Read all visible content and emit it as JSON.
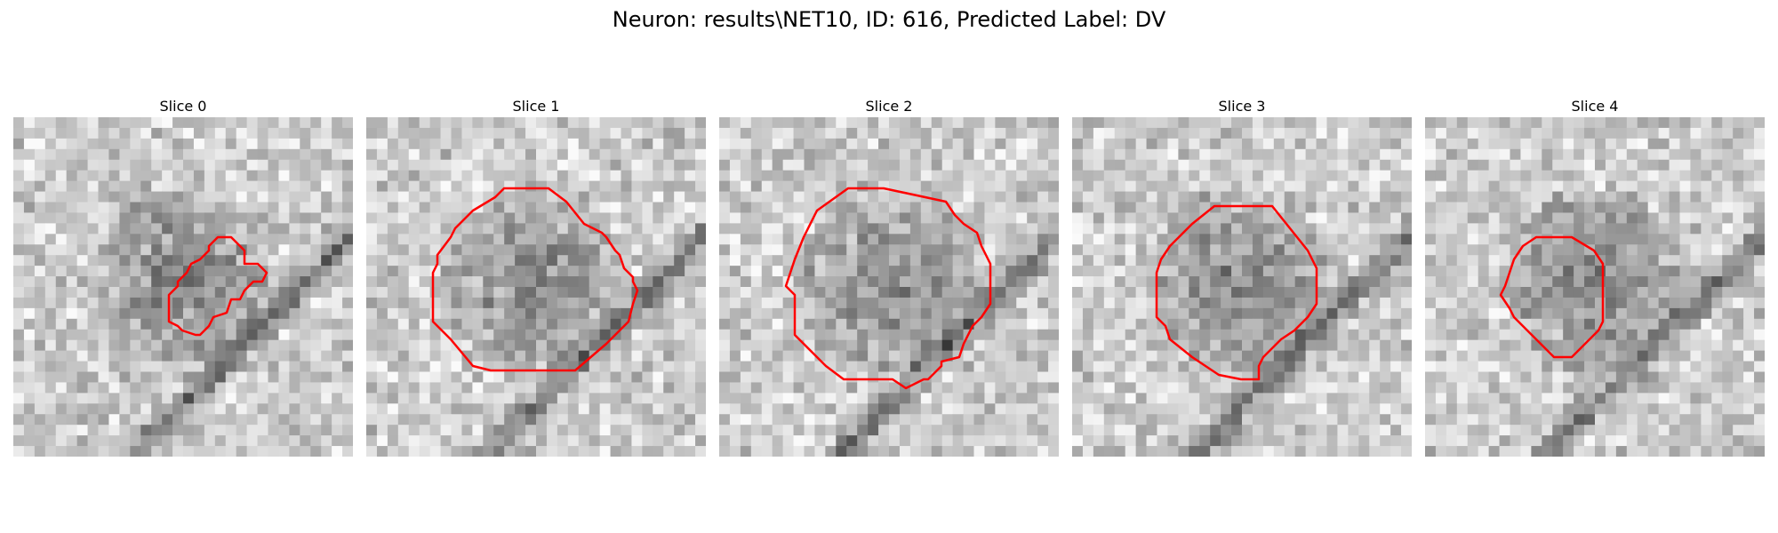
{
  "figure": {
    "title": "Neuron: results\\NET10, ID: 616, Predicted Label: DV"
  },
  "colors": {
    "background": "#ffffff",
    "contour": "#ff0000",
    "colormap": "gray"
  },
  "panels": [
    {
      "title": "Slice 0"
    },
    {
      "title": "Slice 1"
    },
    {
      "title": "Slice 2"
    },
    {
      "title": "Slice 3"
    },
    {
      "title": "Slice 4"
    }
  ]
}
